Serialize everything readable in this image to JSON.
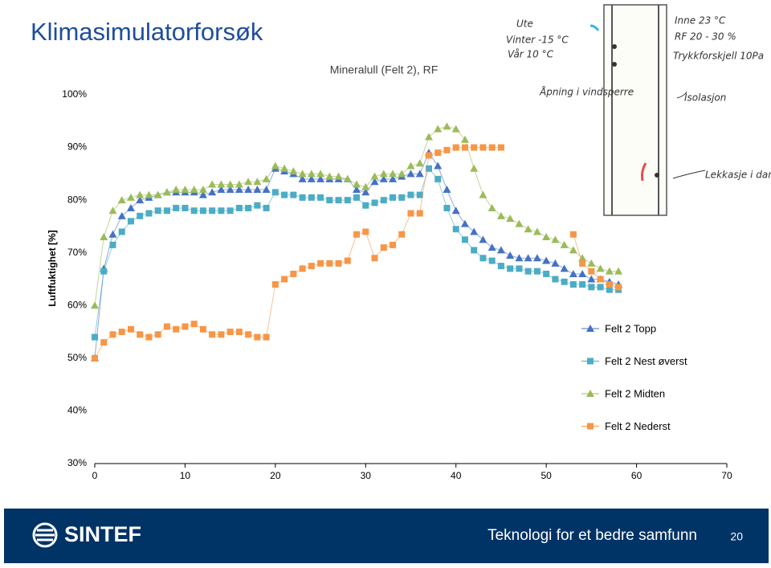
{
  "slide": {
    "title": "Klimasimulatorforsøk",
    "brand": "SINTEF",
    "footer_text": "Teknologi for et bedre samfunn",
    "page_number": "20"
  },
  "chart_data": {
    "type": "line",
    "title": "Mineralull (Felt 2), RF",
    "y_label": "Luftfuktighet [%]",
    "x": [
      0,
      1,
      2,
      3,
      4,
      5,
      6,
      7,
      8,
      9,
      10,
      11,
      12,
      13,
      14,
      15,
      16,
      17,
      18,
      19,
      20,
      21,
      22,
      23,
      24,
      25,
      26,
      27,
      28,
      29,
      30,
      31,
      32,
      33,
      34,
      35,
      36,
      37,
      38,
      39,
      40,
      41,
      42,
      43,
      44,
      45,
      46,
      47,
      48,
      49,
      50,
      51,
      52,
      53,
      54,
      55,
      56,
      57,
      58
    ],
    "xlim": [
      0,
      70
    ],
    "xticks": [
      0,
      10,
      20,
      30,
      40,
      50,
      60,
      70
    ],
    "ylim": [
      30,
      100
    ],
    "yticks": [
      {
        "value": 30,
        "label": "30%"
      },
      {
        "value": 40,
        "label": "40%"
      },
      {
        "value": 50,
        "label": "50%"
      },
      {
        "value": 60,
        "label": "60%"
      },
      {
        "value": 70,
        "label": "70%"
      },
      {
        "value": 80,
        "label": "80%"
      },
      {
        "value": 90,
        "label": "90%"
      },
      {
        "value": 100,
        "label": "100%"
      }
    ],
    "grid": false,
    "legend": "right",
    "series": [
      {
        "name": "Felt 2 Topp",
        "color": "#4472c4",
        "marker": "triangle",
        "values": [
          50,
          67,
          73.5,
          77,
          78.5,
          80,
          80.5,
          81,
          81.5,
          81.5,
          81.5,
          81.5,
          81,
          81.5,
          82,
          82,
          82,
          82,
          82,
          82,
          86,
          85.5,
          85,
          84,
          84,
          84,
          84,
          84,
          84,
          82,
          81.5,
          83.5,
          84,
          84,
          84.5,
          85,
          85,
          89,
          86.5,
          82,
          78,
          75.5,
          74,
          72.5,
          71,
          70.5,
          69.5,
          69,
          69,
          69,
          68.5,
          68,
          67,
          66,
          66,
          65,
          65,
          64.5,
          64
        ]
      },
      {
        "name": "Felt 2 Nest øverst",
        "color": "#4bacc6",
        "marker": "square",
        "values": [
          54,
          66.5,
          71.5,
          74,
          76,
          77,
          77.5,
          78,
          78,
          78.5,
          78.5,
          78,
          78,
          78,
          78,
          78,
          78.5,
          78.5,
          79,
          78.5,
          81.5,
          81,
          81,
          80.5,
          80.5,
          80.5,
          80,
          80,
          80,
          80.5,
          79,
          79.5,
          80,
          80.5,
          80.5,
          81,
          81,
          86,
          84,
          78.5,
          74.5,
          72.5,
          70.5,
          69,
          68.5,
          67.5,
          67,
          67,
          66.5,
          66.5,
          66,
          65,
          64.5,
          64,
          64,
          63.5,
          63.5,
          63,
          63
        ]
      },
      {
        "name": "Felt 2 Midten",
        "color": "#9bbb59",
        "marker": "triangle",
        "values": [
          60,
          73,
          78,
          80,
          80.5,
          81,
          81,
          81,
          81.5,
          82,
          82,
          82,
          82,
          83,
          83,
          83,
          83,
          83.5,
          83.5,
          84,
          86.5,
          86,
          85.5,
          85,
          85,
          85,
          84.5,
          84.5,
          84,
          83,
          82.5,
          84.5,
          85,
          85,
          85,
          86.5,
          87,
          92,
          93.5,
          94,
          93.5,
          91.5,
          86,
          81,
          78.5,
          77,
          76.5,
          75.5,
          74.5,
          74,
          73,
          72.5,
          71.5,
          70.5,
          69,
          68,
          67,
          66.5,
          66.5
        ]
      },
      {
        "name": "Felt 2 Nederst",
        "color": "#f79646",
        "marker": "square",
        "values": [
          50,
          53,
          54.5,
          55,
          55.5,
          54.5,
          54,
          54.5,
          56,
          55.5,
          56,
          56.5,
          55.5,
          54.5,
          54.5,
          55,
          55,
          54.5,
          54,
          54,
          64,
          65,
          66,
          67,
          67.5,
          68,
          68,
          68,
          68.5,
          73.5,
          74,
          69,
          71,
          71.5,
          73.5,
          77.5,
          77.5,
          88.5,
          89,
          89.5,
          90,
          90,
          90,
          90,
          90,
          90,
          null,
          null,
          null,
          null,
          null,
          null,
          null,
          73.5,
          68,
          66.5,
          65,
          64,
          63.5
        ]
      }
    ],
    "annotations": [
      "Ute",
      "Vinter -15 °C",
      "Vår 10 °C",
      "Åpning i vindsperre",
      "Inne 23 °C",
      "RF 20 - 30 %",
      "Trykkforskjell 10Pa",
      "Isolasjon",
      "Lekkasje i dampsperre"
    ]
  }
}
